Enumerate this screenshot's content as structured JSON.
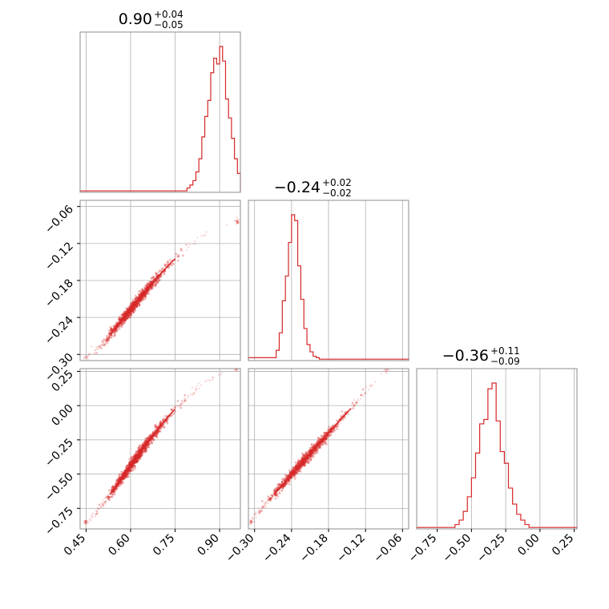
{
  "chart_data": {
    "type": "corner",
    "color": "#d62728",
    "grid": true,
    "parameters": [
      {
        "title": {
          "median": "0.90",
          "plus": "+0.04",
          "minus": "−0.05"
        },
        "range": [
          0.43,
          0.97
        ],
        "ticks": [
          {
            "v": 0.45,
            "label": "0.45"
          },
          {
            "v": 0.6,
            "label": "0.60"
          },
          {
            "v": 0.75,
            "label": "0.75"
          },
          {
            "v": 0.9,
            "label": "0.90"
          }
        ],
        "hist_x": [
          0.43,
          0.79,
          0.8,
          0.81,
          0.82,
          0.83,
          0.84,
          0.85,
          0.86,
          0.87,
          0.88,
          0.89,
          0.9,
          0.91,
          0.92,
          0.93,
          0.94,
          0.95,
          0.96,
          0.97
        ],
        "hist_y": [
          0.01,
          0.03,
          0.05,
          0.08,
          0.14,
          0.23,
          0.38,
          0.52,
          0.63,
          0.82,
          0.92,
          0.88,
          1.0,
          0.9,
          0.64,
          0.51,
          0.37,
          0.23,
          0.13
        ]
      },
      {
        "title": {
          "median": "−0.24",
          "plus": "+0.02",
          "minus": "−0.02"
        },
        "range": [
          -0.31,
          -0.05
        ],
        "ticks": [
          {
            "v": -0.3,
            "label": "−0.30"
          },
          {
            "v": -0.24,
            "label": "−0.24"
          },
          {
            "v": -0.18,
            "label": "−0.18"
          },
          {
            "v": -0.12,
            "label": "−0.12"
          },
          {
            "v": -0.06,
            "label": "−0.06"
          }
        ],
        "hist_x": [
          -0.31,
          -0.265,
          -0.26,
          -0.255,
          -0.25,
          -0.245,
          -0.24,
          -0.235,
          -0.23,
          -0.225,
          -0.22,
          -0.215,
          -0.21,
          -0.205,
          -0.2,
          -0.195,
          -0.05
        ],
        "hist_y": [
          0.02,
          0.07,
          0.19,
          0.41,
          0.58,
          0.81,
          1.0,
          0.96,
          0.65,
          0.42,
          0.22,
          0.11,
          0.06,
          0.03,
          0.02,
          0.01
        ]
      },
      {
        "title": {
          "median": "−0.36",
          "plus": "+0.11",
          "minus": "−0.09"
        },
        "range": [
          -0.9,
          0.27
        ],
        "ticks": [
          {
            "v": -0.75,
            "label": "−0.75"
          },
          {
            "v": -0.5,
            "label": "−0.50"
          },
          {
            "v": -0.25,
            "label": "−0.25"
          },
          {
            "v": 0.0,
            "label": "0.00"
          },
          {
            "v": 0.25,
            "label": "0.25"
          }
        ],
        "hist_x": [
          -0.9,
          -0.62,
          -0.59,
          -0.56,
          -0.53,
          -0.5,
          -0.47,
          -0.44,
          -0.41,
          -0.38,
          -0.35,
          -0.32,
          -0.29,
          -0.26,
          -0.23,
          -0.2,
          -0.17,
          -0.14,
          -0.11,
          -0.08,
          0.27
        ],
        "hist_y": [
          0.01,
          0.03,
          0.06,
          0.12,
          0.22,
          0.35,
          0.52,
          0.72,
          0.75,
          0.96,
          1.0,
          0.74,
          0.53,
          0.45,
          0.28,
          0.17,
          0.1,
          0.06,
          0.03,
          0.01
        ]
      }
    ]
  }
}
